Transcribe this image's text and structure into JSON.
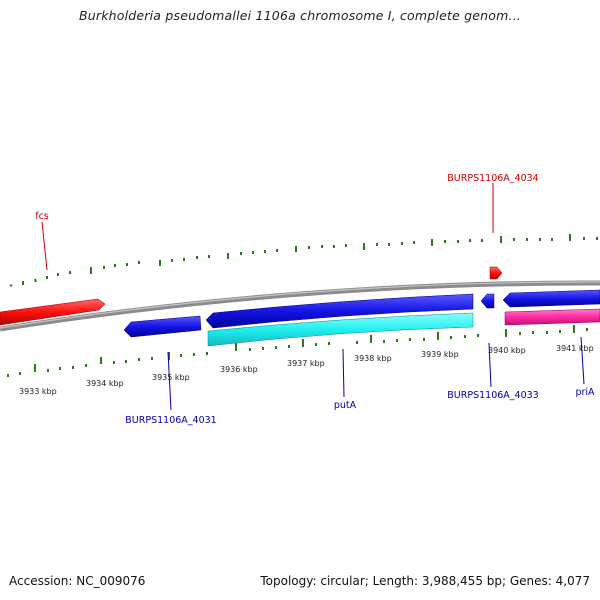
{
  "title": "Burkholderia pseudomallei 1106a chromosome I, complete genom...",
  "footer": {
    "accession": "Accession: NC_009076",
    "summary": "Topology: circular; Length: 3,988,455 bp; Genes: 4,077"
  },
  "ticks": [
    "3933 kbp",
    "3934 kbp",
    "3935 kbp",
    "3936 kbp",
    "3937 kbp",
    "3938 kbp",
    "3939 kbp",
    "3940 kbp",
    "3941 kbp"
  ],
  "genes": [
    {
      "label": "fcs",
      "strand": "+",
      "color": "#cc0000"
    },
    {
      "label": "BURPS1106A_4034",
      "strand": "+",
      "color": "#cc0000"
    },
    {
      "label": "BURPS1106A_4031",
      "strand": "-",
      "color": "#0000aa"
    },
    {
      "label": "putA",
      "strand": "-",
      "color": "#0000aa"
    },
    {
      "label": "BURPS1106A_4033",
      "strand": "-",
      "color": "#0000aa"
    },
    {
      "label": "priA",
      "strand": "-",
      "color": "#0000aa"
    }
  ],
  "colors": {
    "forward_cds": "#ff1f1f",
    "reverse_cds": "#1a1aee",
    "cyan_feature": "#22f0f0",
    "pink_feature": "#ff2fa6",
    "backbone": "#888888",
    "tick_marks": "#2a7a1a"
  }
}
